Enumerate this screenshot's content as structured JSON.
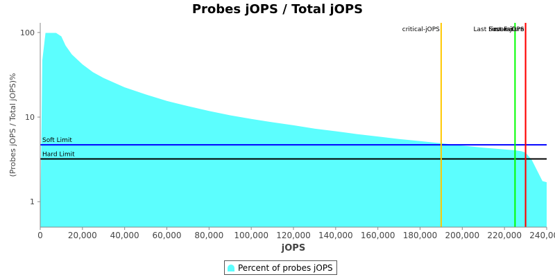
{
  "chart_data": {
    "type": "area",
    "title": "Probes jOPS / Total jOPS",
    "xlabel": "jOPS",
    "ylabel": "(Probes jOPS / Total jOPS)%",
    "xlim": [
      0,
      240000
    ],
    "ylim": [
      0.5,
      130
    ],
    "y_scale": "log",
    "x_ticks": [
      0,
      20000,
      40000,
      60000,
      80000,
      100000,
      120000,
      140000,
      160000,
      180000,
      200000,
      220000,
      240000
    ],
    "x_tick_labels": [
      "0",
      "20,000",
      "40,000",
      "60,000",
      "80,000",
      "100,000",
      "120,000",
      "140,000",
      "160,000",
      "180,000",
      "200,000",
      "220,000",
      "240,000"
    ],
    "y_ticks": [
      1,
      10,
      100
    ],
    "y_tick_labels": [
      "1",
      "10",
      "100"
    ],
    "grid": false,
    "legend_position": "bottom-center",
    "series": [
      {
        "name": "Percent of probes jOPS",
        "color": "#5cfefe",
        "x": [
          0,
          1000,
          2500,
          5000,
          7500,
          10000,
          12000,
          15000,
          20000,
          25000,
          30000,
          40000,
          50000,
          60000,
          70000,
          80000,
          90000,
          100000,
          110000,
          120000,
          130000,
          140000,
          150000,
          160000,
          170000,
          180000,
          190000,
          200000,
          210000,
          220000,
          225000,
          228000,
          230000,
          233000,
          236000,
          238000,
          240000
        ],
        "y": [
          0.5,
          47,
          99,
          99,
          99,
          90,
          70,
          55,
          42,
          34,
          29,
          22.5,
          18.5,
          15.5,
          13.5,
          11.8,
          10.5,
          9.5,
          8.7,
          8.0,
          7.3,
          6.8,
          6.3,
          5.9,
          5.5,
          5.2,
          4.9,
          4.6,
          4.35,
          4.15,
          4.05,
          3.95,
          3.8,
          3.1,
          2.2,
          1.75,
          1.7
        ]
      }
    ],
    "horizontal_lines": [
      {
        "label": "Soft Limit",
        "y": 4.7,
        "color": "#0000ff"
      },
      {
        "label": "Hard Limit",
        "y": 3.2,
        "color": "#000000"
      }
    ],
    "vertical_lines": [
      {
        "label": "critical-jOPS",
        "x": 190000,
        "color": "#ffc800"
      },
      {
        "label": "Last Success",
        "x": 225000,
        "color": "#00ff00"
      },
      {
        "label": "max-jOPS",
        "x": 230000,
        "color": "#ff0000"
      },
      {
        "label": "First Failure",
        "x": 230000,
        "color": "#ff0000"
      }
    ]
  }
}
